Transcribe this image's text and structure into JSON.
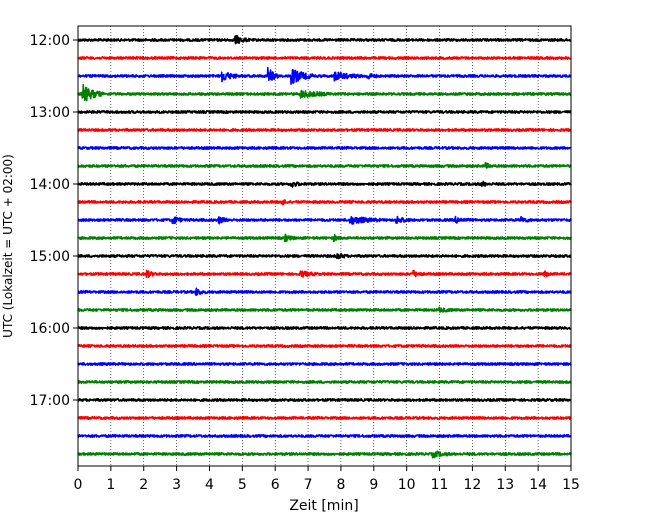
{
  "chart_data": {
    "type": "line",
    "title": "",
    "xlabel": "Zeit  [min]",
    "ylabel": "UTC (Lokalzeit = UTC + 02:00)",
    "xlim": [
      0,
      15
    ],
    "xticks": [
      "0",
      "1",
      "2",
      "3",
      "4",
      "5",
      "6",
      "7",
      "8",
      "9",
      "10",
      "11",
      "12",
      "13",
      "14",
      "15"
    ],
    "hour_labels": [
      "12:00",
      "13:00",
      "14:00",
      "15:00",
      "16:00",
      "17:00"
    ],
    "grid": "vertical dotted",
    "colors": [
      "#000000",
      "#ff0000",
      "#0000ff",
      "#008000"
    ],
    "traces": [
      {
        "row": 0,
        "color": "#000000",
        "events": [
          {
            "t": 4.8,
            "amp": 0.5,
            "dur": 0.4
          }
        ]
      },
      {
        "row": 1,
        "color": "#ff0000",
        "events": []
      },
      {
        "row": 2,
        "color": "#0000ff",
        "events": [
          {
            "t": 4.4,
            "amp": 0.6,
            "dur": 0.5
          },
          {
            "t": 5.8,
            "amp": 1.0,
            "dur": 0.3
          },
          {
            "t": 6.5,
            "amp": 0.9,
            "dur": 0.7
          },
          {
            "t": 7.8,
            "amp": 0.5,
            "dur": 0.8
          },
          {
            "t": 8.8,
            "amp": 0.4,
            "dur": 0.3
          }
        ]
      },
      {
        "row": 3,
        "color": "#008000",
        "events": [
          {
            "t": 0.15,
            "amp": 1.1,
            "dur": 0.6
          },
          {
            "t": 6.8,
            "amp": 0.4,
            "dur": 0.9
          }
        ]
      },
      {
        "row": 4,
        "color": "#000000",
        "events": []
      },
      {
        "row": 5,
        "color": "#ff0000",
        "events": []
      },
      {
        "row": 6,
        "color": "#0000ff",
        "events": []
      },
      {
        "row": 7,
        "color": "#008000",
        "events": [
          {
            "t": 12.4,
            "amp": 0.3,
            "dur": 0.2
          }
        ]
      },
      {
        "row": 8,
        "color": "#000000",
        "events": [
          {
            "t": 6.5,
            "amp": 0.35,
            "dur": 0.3
          },
          {
            "t": 12.3,
            "amp": 0.3,
            "dur": 0.2
          }
        ]
      },
      {
        "row": 9,
        "color": "#ff0000",
        "events": [
          {
            "t": 6.2,
            "amp": 0.3,
            "dur": 0.2
          }
        ]
      },
      {
        "row": 10,
        "color": "#0000ff",
        "events": [
          {
            "t": 2.9,
            "amp": 0.5,
            "dur": 0.3
          },
          {
            "t": 4.3,
            "amp": 0.35,
            "dur": 0.3
          },
          {
            "t": 8.3,
            "amp": 0.45,
            "dur": 0.9
          },
          {
            "t": 9.7,
            "amp": 0.4,
            "dur": 0.4
          },
          {
            "t": 11.5,
            "amp": 0.3,
            "dur": 0.4
          },
          {
            "t": 13.5,
            "amp": 0.3,
            "dur": 0.3
          }
        ]
      },
      {
        "row": 11,
        "color": "#008000",
        "events": [
          {
            "t": 6.3,
            "amp": 0.35,
            "dur": 0.3
          },
          {
            "t": 7.8,
            "amp": 0.3,
            "dur": 0.2
          }
        ]
      },
      {
        "row": 12,
        "color": "#000000",
        "events": [
          {
            "t": 7.9,
            "amp": 0.35,
            "dur": 0.3
          }
        ]
      },
      {
        "row": 13,
        "color": "#ff0000",
        "events": [
          {
            "t": 2.1,
            "amp": 0.35,
            "dur": 0.3
          },
          {
            "t": 6.8,
            "amp": 0.3,
            "dur": 0.5
          },
          {
            "t": 10.2,
            "amp": 0.35,
            "dur": 0.3
          },
          {
            "t": 14.2,
            "amp": 0.3,
            "dur": 0.2
          }
        ]
      },
      {
        "row": 14,
        "color": "#0000ff",
        "events": [
          {
            "t": 3.6,
            "amp": 0.35,
            "dur": 0.3
          }
        ]
      },
      {
        "row": 15,
        "color": "#008000",
        "events": [
          {
            "t": 11.0,
            "amp": 0.2,
            "dur": 0.4
          }
        ]
      },
      {
        "row": 16,
        "color": "#000000",
        "events": []
      },
      {
        "row": 17,
        "color": "#ff0000",
        "events": []
      },
      {
        "row": 18,
        "color": "#0000ff",
        "events": []
      },
      {
        "row": 19,
        "color": "#008000",
        "events": []
      },
      {
        "row": 20,
        "color": "#000000",
        "events": []
      },
      {
        "row": 21,
        "color": "#ff0000",
        "events": []
      },
      {
        "row": 22,
        "color": "#0000ff",
        "events": []
      },
      {
        "row": 23,
        "color": "#008000",
        "events": [
          {
            "t": 10.8,
            "amp": 0.35,
            "dur": 0.5
          }
        ]
      }
    ]
  }
}
